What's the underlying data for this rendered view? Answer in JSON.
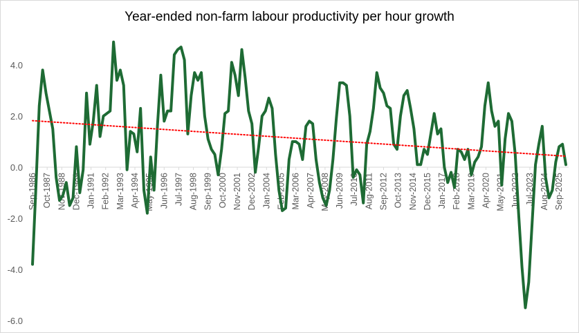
{
  "chart_data": {
    "type": "line",
    "title": "Year-ended non-farm labour productivity per hour growth",
    "xlabel": "",
    "ylabel": "",
    "ylim": [
      -6.0,
      5.0
    ],
    "yticks": [
      -6.0,
      -4.0,
      -2.0,
      0.0,
      2.0,
      4.0
    ],
    "grid": false,
    "legend": "none",
    "x_tick_labels": [
      "Sep-1986",
      "Oct-1987",
      "Nov-1988",
      "Dec-1989",
      "Jan-1991",
      "Feb-1992",
      "Mar-1993",
      "Apr-1994",
      "May-1995",
      "Jun-1996",
      "Jul-1997",
      "Aug-1998",
      "Sep-1999",
      "Oct-2000",
      "Nov-2001",
      "Dec-2002",
      "Jan-2004",
      "Feb-2005",
      "Mar-2006",
      "Apr-2007",
      "May-2008",
      "Jun-2009",
      "Jul-2010",
      "Aug-2011",
      "Sep-2012",
      "Oct-2013",
      "Nov-2014",
      "Dec-2015",
      "Jan-2017",
      "Feb-2018",
      "Mar-2019",
      "Apr-2020",
      "May-2021",
      "Jun-2022",
      "Jul-2023",
      "Aug-2024",
      "Sep-2025"
    ],
    "series": [
      {
        "color": "#1e6b34",
        "style": "solid",
        "points": [
          [
            "Sep-1986",
            -3.8
          ],
          [
            "Dec-1986",
            -0.8
          ],
          [
            "Mar-1987",
            2.4
          ],
          [
            "Jun-1987",
            3.8
          ],
          [
            "Sep-1987",
            2.9
          ],
          [
            "Dec-1987",
            2.2
          ],
          [
            "Mar-1988",
            1.5
          ],
          [
            "Jun-1988",
            -0.4
          ],
          [
            "Sep-1988",
            -1.3
          ],
          [
            "Dec-1988",
            -1.1
          ],
          [
            "Mar-1989",
            -0.6
          ],
          [
            "Jun-1989",
            -1.5
          ],
          [
            "Sep-1989",
            -1.2
          ],
          [
            "Dec-1989",
            0.8
          ],
          [
            "Mar-1990",
            -1.0
          ],
          [
            "Jun-1990",
            -0.1
          ],
          [
            "Sep-1990",
            2.9
          ],
          [
            "Dec-1990",
            0.9
          ],
          [
            "Mar-1991",
            1.8
          ],
          [
            "Jun-1991",
            3.2
          ],
          [
            "Sep-1991",
            1.2
          ],
          [
            "Dec-1991",
            2.0
          ],
          [
            "Mar-1992",
            2.1
          ],
          [
            "Jun-1992",
            2.2
          ],
          [
            "Sep-1992",
            4.9
          ],
          [
            "Dec-1992",
            3.4
          ],
          [
            "Mar-1993",
            3.8
          ],
          [
            "Jun-1993",
            3.2
          ],
          [
            "Sep-1993",
            -0.1
          ],
          [
            "Dec-1993",
            1.4
          ],
          [
            "Mar-1994",
            1.3
          ],
          [
            "Jun-1994",
            0.6
          ],
          [
            "Sep-1994",
            2.3
          ],
          [
            "Dec-1994",
            -0.9
          ],
          [
            "Mar-1995",
            -1.8
          ],
          [
            "Jun-1995",
            0.4
          ],
          [
            "Sep-1995",
            -0.9
          ],
          [
            "Dec-1995",
            1.6
          ],
          [
            "Mar-1996",
            3.6
          ],
          [
            "Jun-1996",
            1.8
          ],
          [
            "Sep-1996",
            2.2
          ],
          [
            "Dec-1996",
            2.2
          ],
          [
            "Mar-1997",
            4.4
          ],
          [
            "Jun-1997",
            4.6
          ],
          [
            "Sep-1997",
            4.7
          ],
          [
            "Dec-1997",
            4.2
          ],
          [
            "Mar-1998",
            1.3
          ],
          [
            "Jun-1998",
            2.8
          ],
          [
            "Sep-1998",
            3.7
          ],
          [
            "Dec-1998",
            3.4
          ],
          [
            "Mar-1999",
            3.7
          ],
          [
            "Jun-1999",
            2.0
          ],
          [
            "Sep-1999",
            1.1
          ],
          [
            "Dec-1999",
            0.7
          ],
          [
            "Mar-2000",
            0.5
          ],
          [
            "Jun-2000",
            -0.3
          ],
          [
            "Sep-2000",
            0.7
          ],
          [
            "Dec-2000",
            2.1
          ],
          [
            "Mar-2001",
            2.2
          ],
          [
            "Jun-2001",
            4.1
          ],
          [
            "Sep-2001",
            3.6
          ],
          [
            "Dec-2001",
            2.8
          ],
          [
            "Mar-2002",
            4.6
          ],
          [
            "Jun-2002",
            3.5
          ],
          [
            "Sep-2002",
            2.2
          ],
          [
            "Dec-2002",
            1.7
          ],
          [
            "Mar-2003",
            -0.2
          ],
          [
            "Jun-2003",
            0.8
          ],
          [
            "Sep-2003",
            2.0
          ],
          [
            "Dec-2003",
            2.2
          ],
          [
            "Mar-2004",
            2.7
          ],
          [
            "Jun-2004",
            2.3
          ],
          [
            "Sep-2004",
            0.5
          ],
          [
            "Dec-2004",
            -0.9
          ],
          [
            "Mar-2005",
            -1.7
          ],
          [
            "Jun-2005",
            -1.6
          ],
          [
            "Sep-2005",
            0.3
          ],
          [
            "Dec-2005",
            1.0
          ],
          [
            "Mar-2006",
            1.0
          ],
          [
            "Jun-2006",
            0.9
          ],
          [
            "Sep-2006",
            0.3
          ],
          [
            "Dec-2006",
            1.6
          ],
          [
            "Mar-2007",
            1.8
          ],
          [
            "Jun-2007",
            1.7
          ],
          [
            "Sep-2007",
            0.3
          ],
          [
            "Dec-2007",
            -0.6
          ],
          [
            "Mar-2008",
            -1.2
          ],
          [
            "Jun-2008",
            -1.5
          ],
          [
            "Sep-2008",
            -0.9
          ],
          [
            "Dec-2008",
            0.3
          ],
          [
            "Mar-2009",
            1.9
          ],
          [
            "Jun-2009",
            3.3
          ],
          [
            "Sep-2009",
            3.3
          ],
          [
            "Dec-2009",
            3.2
          ],
          [
            "Mar-2010",
            2.0
          ],
          [
            "Jun-2010",
            -0.4
          ],
          [
            "Sep-2010",
            -0.1
          ],
          [
            "Dec-2010",
            -0.3
          ],
          [
            "Mar-2011",
            -1.4
          ],
          [
            "Jun-2011",
            0.9
          ],
          [
            "Sep-2011",
            1.4
          ],
          [
            "Dec-2011",
            2.3
          ],
          [
            "Mar-2012",
            3.7
          ],
          [
            "Jun-2012",
            3.1
          ],
          [
            "Sep-2012",
            2.9
          ],
          [
            "Dec-2012",
            2.4
          ],
          [
            "Mar-2013",
            2.3
          ],
          [
            "Jun-2013",
            0.9
          ],
          [
            "Sep-2013",
            0.7
          ],
          [
            "Dec-2013",
            2.0
          ],
          [
            "Mar-2014",
            2.8
          ],
          [
            "Jun-2014",
            3.0
          ],
          [
            "Sep-2014",
            2.3
          ],
          [
            "Dec-2014",
            1.5
          ],
          [
            "Mar-2015",
            0.1
          ],
          [
            "Jun-2015",
            0.1
          ],
          [
            "Sep-2015",
            0.7
          ],
          [
            "Dec-2015",
            0.5
          ],
          [
            "Mar-2016",
            1.3
          ],
          [
            "Jun-2016",
            2.1
          ],
          [
            "Sep-2016",
            1.3
          ],
          [
            "Dec-2016",
            1.5
          ],
          [
            "Mar-2017",
            0.0
          ],
          [
            "Jun-2017",
            -0.6
          ],
          [
            "Sep-2017",
            -0.2
          ],
          [
            "Dec-2017",
            -0.8
          ],
          [
            "Mar-2018",
            0.7
          ],
          [
            "Jun-2018",
            0.6
          ],
          [
            "Sep-2018",
            0.3
          ],
          [
            "Dec-2018",
            0.7
          ],
          [
            "Mar-2019",
            -0.3
          ],
          [
            "Jun-2019",
            0.2
          ],
          [
            "Sep-2019",
            0.4
          ],
          [
            "Dec-2019",
            0.8
          ],
          [
            "Mar-2020",
            2.4
          ],
          [
            "Jun-2020",
            3.3
          ],
          [
            "Sep-2020",
            2.2
          ],
          [
            "Dec-2020",
            1.6
          ],
          [
            "Mar-2021",
            1.8
          ],
          [
            "Jun-2021",
            -0.7
          ],
          [
            "Sep-2021",
            1.1
          ],
          [
            "Dec-2021",
            2.1
          ],
          [
            "Mar-2022",
            1.8
          ],
          [
            "Jun-2022",
            0.5
          ],
          [
            "Sep-2022",
            -1.8
          ],
          [
            "Dec-2022",
            -3.9
          ],
          [
            "Mar-2023",
            -5.5
          ],
          [
            "Jun-2023",
            -4.5
          ],
          [
            "Sep-2023",
            -2.2
          ],
          [
            "Dec-2023",
            0.1
          ],
          [
            "Mar-2024",
            0.9
          ],
          [
            "Jun-2024",
            1.6
          ],
          [
            "Sep-2024",
            -0.4
          ],
          [
            "Dec-2024",
            -1.2
          ],
          [
            "Mar-2025",
            -0.9
          ],
          [
            "Jun-2025",
            0.2
          ],
          [
            "Sep-2025",
            0.8
          ],
          [
            "Dec-2025",
            0.9
          ],
          [
            "Mar-2026",
            0.1
          ]
        ]
      },
      {
        "color": "#ff0000",
        "style": "dotted",
        "type": "trendline",
        "points": [
          [
            "Sep-1986",
            1.82
          ],
          [
            "Mar-2026",
            0.43
          ]
        ]
      }
    ]
  },
  "style": {
    "line_color": "#1e6b34",
    "trend_color": "#ff0000",
    "axis_color": "#d9d9d9",
    "text_color": "#595959"
  }
}
